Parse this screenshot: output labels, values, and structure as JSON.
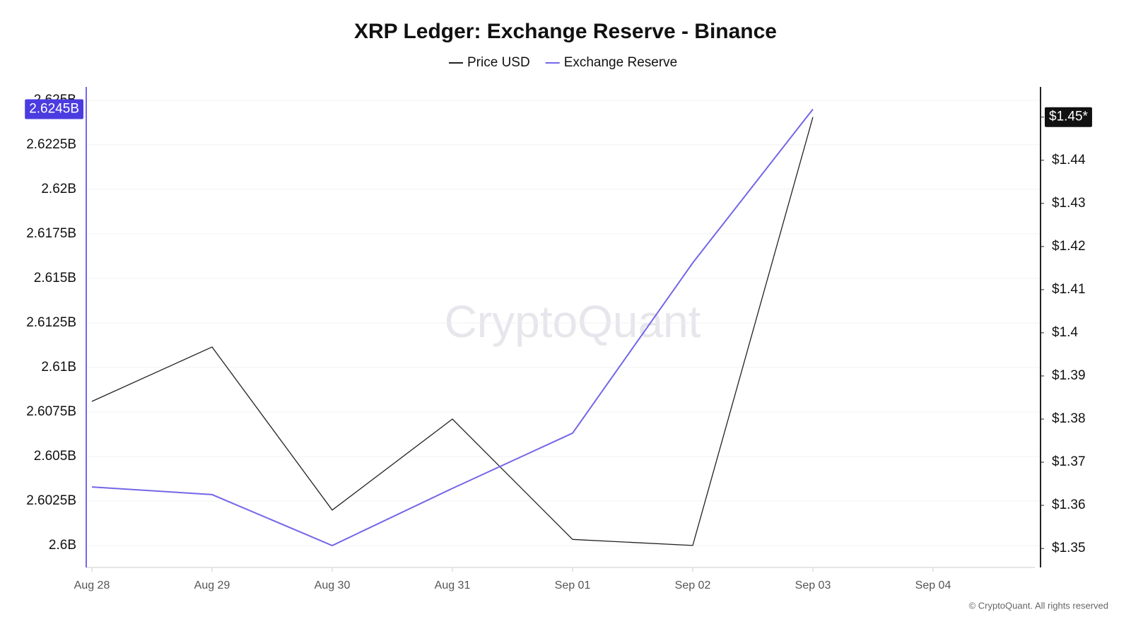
{
  "chart_data": {
    "type": "line",
    "title": "XRP Ledger: Exchange Reserve - Binance",
    "watermark": "CryptoQuant",
    "footer": "© CryptoQuant. All rights reserved",
    "categories": [
      "Aug 28",
      "Aug 29",
      "Aug 30",
      "Aug 31",
      "Sep 01",
      "Sep 02",
      "Sep 03",
      "Sep 04"
    ],
    "series": [
      {
        "name": "Price USD",
        "color": "#222222",
        "axis": "y2",
        "values": [
          1.3841,
          1.3967,
          1.3589,
          1.38,
          1.3521,
          1.3507,
          1.45,
          null
        ],
        "value_labels": [
          null,
          null,
          null,
          null,
          null,
          null,
          "$1.45*",
          null
        ]
      },
      {
        "name": "Exchange Reserve",
        "color": "#7366e8",
        "values": [
          2603290000,
          2602860000,
          2600000000,
          2603210000,
          2606310000,
          2615870000,
          2624500000,
          null
        ],
        "value_labels": [
          null,
          null,
          null,
          null,
          null,
          null,
          "2.6245B",
          null
        ]
      }
    ],
    "ylim": [
      2598770000,
      2625750000
    ],
    "yticks": [
      {
        "value": 2600000000,
        "label": "2.6B"
      },
      {
        "value": 2602500000,
        "label": "2.6025B"
      },
      {
        "value": 2605000000,
        "label": "2.605B"
      },
      {
        "value": 2607500000,
        "label": "2.6075B"
      },
      {
        "value": 2610000000,
        "label": "2.61B"
      },
      {
        "value": 2612500000,
        "label": "2.6125B"
      },
      {
        "value": 2615000000,
        "label": "2.615B"
      },
      {
        "value": 2617500000,
        "label": "2.6175B"
      },
      {
        "value": 2620000000,
        "label": "2.62B"
      },
      {
        "value": 2622500000,
        "label": "2.6225B"
      },
      {
        "value": 2625000000,
        "label": "2.625B"
      }
    ],
    "y2lim": [
      1.3456,
      1.457
    ],
    "y2ticks": [
      {
        "value": 1.35,
        "label": "$1.35"
      },
      {
        "value": 1.36,
        "label": "$1.36"
      },
      {
        "value": 1.37,
        "label": "$1.37"
      },
      {
        "value": 1.38,
        "label": "$1.38"
      },
      {
        "value": 1.39,
        "label": "$1.39"
      },
      {
        "value": 1.4,
        "label": "$1.4"
      },
      {
        "value": 1.41,
        "label": "$1.41"
      },
      {
        "value": 1.42,
        "label": "$1.42"
      },
      {
        "value": 1.43,
        "label": "$1.43"
      },
      {
        "value": 1.44,
        "label": "$1.44"
      },
      {
        "value": 1.45,
        "label": "$1.45"
      }
    ],
    "grid": true,
    "legend": "top"
  }
}
